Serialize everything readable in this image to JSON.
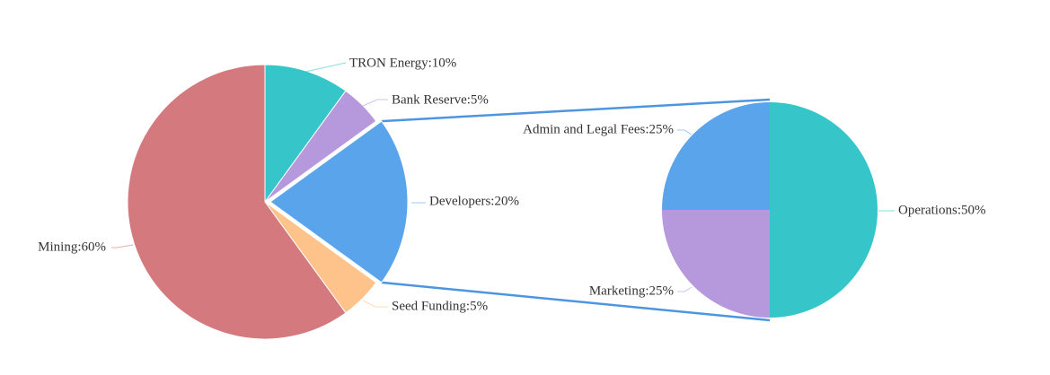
{
  "chart_data": [
    {
      "type": "pie",
      "categories": [
        "TRON Energy",
        "Bank Reserve",
        "Developers",
        "Seed Funding",
        "Mining"
      ],
      "values": [
        10,
        5,
        20,
        5,
        60
      ],
      "labels": [
        "TRON Energy:10%",
        "Bank Reserve:5%",
        "Developers:20%",
        "Seed Funding:5%",
        "Mining:60%"
      ],
      "colors": [
        "#36c6c9",
        "#b698dd",
        "#5aa4ec",
        "#fdc38a",
        "#d4797e"
      ],
      "exploded_category": "Developers"
    },
    {
      "type": "pie",
      "categories": [
        "Operations",
        "Marketing",
        "Admin and Legal Fees"
      ],
      "values": [
        50,
        25,
        25
      ],
      "labels": [
        "Operations:50%",
        "Marketing:25%",
        "Admin and Legal Fees:25%"
      ],
      "colors": [
        "#36c6c9",
        "#b698dd",
        "#5aa4ec"
      ],
      "breakdown_of": "Developers"
    }
  ],
  "connector_color": "#4e95e0"
}
